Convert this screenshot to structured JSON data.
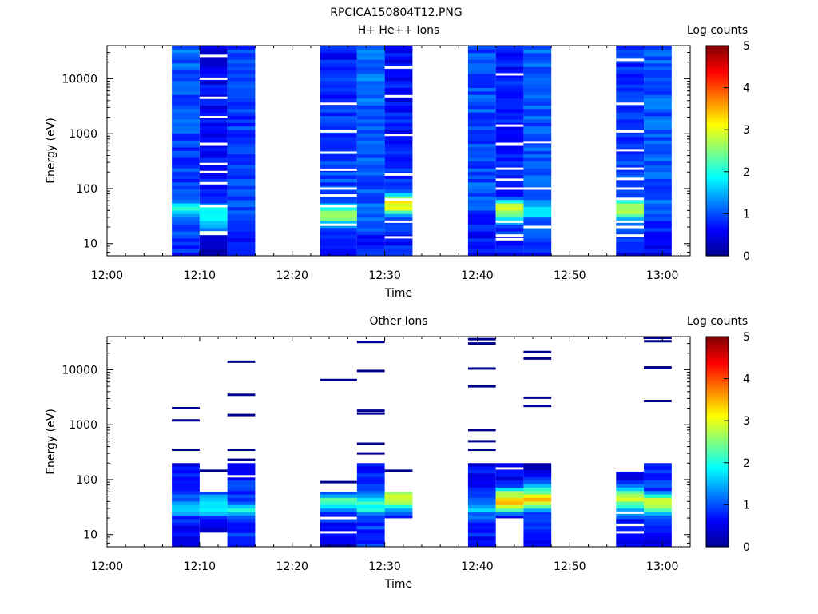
{
  "figure_title": "RPCICA150804T12.PNG",
  "colormap_stops": [
    "#00008f",
    "#0000ff",
    "#0080ff",
    "#00ffff",
    "#80ff80",
    "#ffff00",
    "#ff8000",
    "#ff0000",
    "#800000"
  ],
  "chart_data": [
    {
      "type": "heatmap",
      "title": "H+ He++ Ions",
      "xlabel": "Time",
      "ylabel": "Energy (eV)",
      "yscale": "log",
      "ylim": [
        6,
        40000
      ],
      "xlim": [
        "12:00",
        "13:03"
      ],
      "x_ticks": [
        "12:00",
        "12:10",
        "12:20",
        "12:30",
        "12:40",
        "12:50",
        "13:00"
      ],
      "y_ticks": [
        "10",
        "100",
        "1000",
        "10000"
      ],
      "colorbar": {
        "label": "Log counts",
        "min": 0,
        "max": 5,
        "ticks": [
          "0",
          "1",
          "2",
          "3",
          "4",
          "5"
        ]
      },
      "time_columns": [
        {
          "start": "12:07",
          "end": "12:10",
          "profile": [
            [
              6,
              0.8
            ],
            [
              20,
              1.0
            ],
            [
              30,
              1.4
            ],
            [
              45,
              2.2
            ],
            [
              60,
              1.0
            ],
            [
              150,
              0.9
            ],
            [
              40000,
              1.1
            ]
          ],
          "gaps": []
        },
        {
          "start": "12:10",
          "end": "12:13",
          "profile": [
            [
              6,
              0.3
            ],
            [
              14,
              0.5
            ],
            [
              20,
              1.3
            ],
            [
              30,
              2.0
            ],
            [
              45,
              1.8
            ],
            [
              60,
              0.8
            ],
            [
              40000,
              0.5
            ]
          ],
          "gaps": [
            15,
            16,
            48,
            125,
            200,
            280,
            650,
            2000,
            4500,
            10000,
            26000
          ]
        },
        {
          "start": "12:13",
          "end": "12:16",
          "profile": [
            [
              6,
              0.6
            ],
            [
              20,
              0.8
            ],
            [
              45,
              1.1
            ],
            [
              60,
              0.9
            ],
            [
              40000,
              0.9
            ]
          ],
          "gaps": []
        },
        {
          "start": "12:23",
          "end": "12:27",
          "profile": [
            [
              6,
              0.5
            ],
            [
              20,
              1.0
            ],
            [
              28,
              2.3
            ],
            [
              40,
              2.6
            ],
            [
              55,
              1.0
            ],
            [
              40000,
              0.7
            ]
          ],
          "gaps": [
            22,
            48,
            75,
            100,
            220,
            450,
            1100,
            3500
          ]
        },
        {
          "start": "12:27",
          "end": "12:30",
          "profile": [
            [
              6,
              0.7
            ],
            [
              20,
              0.9
            ],
            [
              45,
              1.2
            ],
            [
              60,
              1.0
            ],
            [
              40000,
              1.2
            ]
          ],
          "gaps": []
        },
        {
          "start": "12:30",
          "end": "12:33",
          "profile": [
            [
              6,
              0.9
            ],
            [
              14,
              0.6
            ],
            [
              30,
              1.0
            ],
            [
              45,
              3.0
            ],
            [
              60,
              3.1
            ],
            [
              100,
              0.8
            ],
            [
              40000,
              0.6
            ]
          ],
          "gaps": [
            13,
            25,
            63,
            180,
            950,
            4800,
            16000
          ]
        },
        {
          "start": "12:39",
          "end": "12:42",
          "profile": [
            [
              6,
              0.5
            ],
            [
              20,
              0.8
            ],
            [
              60,
              1.0
            ],
            [
              40000,
              1.0
            ]
          ],
          "gaps": []
        },
        {
          "start": "12:42",
          "end": "12:45",
          "profile": [
            [
              6,
              0.6
            ],
            [
              20,
              0.9
            ],
            [
              35,
              2.6
            ],
            [
              50,
              2.9
            ],
            [
              70,
              0.8
            ],
            [
              40000,
              0.7
            ]
          ],
          "gaps": [
            12,
            14,
            25,
            100,
            145,
            230,
            650,
            1400,
            12000
          ]
        },
        {
          "start": "12:45",
          "end": "12:48",
          "profile": [
            [
              6,
              0.7
            ],
            [
              25,
              1.0
            ],
            [
              38,
              2.0
            ],
            [
              50,
              1.5
            ],
            [
              70,
              1.0
            ],
            [
              40000,
              1.1
            ]
          ],
          "gaps": [
            20,
            100,
            700
          ]
        },
        {
          "start": "12:55",
          "end": "12:58",
          "profile": [
            [
              6,
              0.5
            ],
            [
              25,
              1.2
            ],
            [
              35,
              2.6
            ],
            [
              50,
              2.8
            ],
            [
              70,
              1.0
            ],
            [
              40000,
              0.8
            ]
          ],
          "gaps": [
            14,
            20,
            25,
            65,
            100,
            150,
            230,
            500,
            1100,
            3500,
            22000
          ]
        },
        {
          "start": "12:58",
          "end": "13:01",
          "profile": [
            [
              6,
              0.6
            ],
            [
              20,
              0.8
            ],
            [
              40,
              1.2
            ],
            [
              100,
              1.0
            ],
            [
              40000,
              1.1
            ]
          ],
          "gaps": []
        }
      ]
    },
    {
      "type": "heatmap",
      "title": "Other Ions",
      "xlabel": "Time",
      "ylabel": "Energy (eV)",
      "yscale": "log",
      "ylim": [
        6,
        40000
      ],
      "xlim": [
        "12:00",
        "13:03"
      ],
      "x_ticks": [
        "12:00",
        "12:10",
        "12:20",
        "12:30",
        "12:40",
        "12:50",
        "13:00"
      ],
      "y_ticks": [
        "10",
        "100",
        "1000",
        "10000"
      ],
      "colorbar": {
        "label": "Log counts",
        "min": 0,
        "max": 5,
        "ticks": [
          "0",
          "1",
          "2",
          "3",
          "4",
          "5"
        ]
      },
      "time_columns": [
        {
          "start": "12:07",
          "end": "12:10",
          "band": [
            6,
            200
          ],
          "profile": [
            [
              6,
              0.3
            ],
            [
              20,
              0.8
            ],
            [
              28,
              1.6
            ],
            [
              35,
              1.3
            ],
            [
              60,
              0.8
            ],
            [
              200,
              0.6
            ]
          ],
          "gaps": [],
          "lines": [
            350,
            1200,
            2000
          ]
        },
        {
          "start": "12:10",
          "end": "12:13",
          "band": [
            11,
            60
          ],
          "profile": [
            [
              11,
              0.3
            ],
            [
              20,
              0.8
            ],
            [
              28,
              2.0
            ],
            [
              38,
              1.8
            ],
            [
              60,
              1.0
            ]
          ],
          "gaps": [],
          "lines": [
            145
          ]
        },
        {
          "start": "12:13",
          "end": "12:16",
          "band": [
            6,
            200
          ],
          "profile": [
            [
              6,
              0.8
            ],
            [
              20,
              0.9
            ],
            [
              28,
              2.3
            ],
            [
              35,
              1.0
            ],
            [
              60,
              0.8
            ],
            [
              200,
              0.7
            ]
          ],
          "gaps": [
            115
          ],
          "lines": [
            230,
            350,
            1500,
            3500,
            14000
          ]
        },
        {
          "start": "12:23",
          "end": "12:27",
          "band": [
            6,
            60
          ],
          "profile": [
            [
              6,
              0.3
            ],
            [
              14,
              0.7
            ],
            [
              25,
              0.8
            ],
            [
              32,
              2.0
            ],
            [
              45,
              2.2
            ],
            [
              60,
              0.8
            ]
          ],
          "gaps": [
            11,
            20
          ],
          "lines": [
            90,
            6500
          ]
        },
        {
          "start": "12:27",
          "end": "12:30",
          "band": [
            6,
            200
          ],
          "profile": [
            [
              6,
              0.8
            ],
            [
              20,
              0.9
            ],
            [
              30,
              2.0
            ],
            [
              40,
              2.2
            ],
            [
              60,
              0.9
            ],
            [
              200,
              0.6
            ]
          ],
          "gaps": [],
          "lines": [
            300,
            450,
            1600,
            1800,
            9500,
            32000
          ]
        },
        {
          "start": "12:30",
          "end": "12:33",
          "band": [
            20,
            60
          ],
          "profile": [
            [
              20,
              0.4
            ],
            [
              30,
              1.5
            ],
            [
              40,
              3.2
            ],
            [
              50,
              2.8
            ],
            [
              60,
              2.3
            ]
          ],
          "gaps": [],
          "lines": [
            145
          ]
        },
        {
          "start": "12:39",
          "end": "12:42",
          "band": [
            6,
            200
          ],
          "profile": [
            [
              6,
              0.6
            ],
            [
              20,
              0.9
            ],
            [
              28,
              1.6
            ],
            [
              38,
              1.2
            ],
            [
              60,
              0.7
            ],
            [
              200,
              0.6
            ]
          ],
          "gaps": [],
          "lines": [
            350,
            500,
            800,
            5000,
            10500,
            30000,
            36000
          ]
        },
        {
          "start": "12:42",
          "end": "12:45",
          "band": [
            20,
            200
          ],
          "profile": [
            [
              20,
              0.4
            ],
            [
              30,
              2.6
            ],
            [
              40,
              3.5
            ],
            [
              55,
              2.8
            ],
            [
              80,
              0.7
            ],
            [
              200,
              0.4
            ]
          ],
          "gaps": [
            160
          ],
          "lines": []
        },
        {
          "start": "12:45",
          "end": "12:48",
          "band": [
            6,
            200
          ],
          "profile": [
            [
              6,
              0.7
            ],
            [
              25,
              0.9
            ],
            [
              35,
              2.8
            ],
            [
              45,
              3.5
            ],
            [
              55,
              2.5
            ],
            [
              100,
              0.8
            ],
            [
              200,
              0.3
            ]
          ],
          "gaps": [],
          "lines": [
            2200,
            3100,
            16000,
            21000
          ]
        },
        {
          "start": "12:55",
          "end": "12:58",
          "band": [
            6,
            140
          ],
          "profile": [
            [
              6,
              0.7
            ],
            [
              20,
              0.8
            ],
            [
              30,
              1.5
            ],
            [
              40,
              2.8
            ],
            [
              55,
              2.5
            ],
            [
              100,
              0.7
            ],
            [
              140,
              0.4
            ]
          ],
          "gaps": [
            11,
            15,
            25
          ],
          "lines": []
        },
        {
          "start": "12:58",
          "end": "13:01",
          "band": [
            6,
            200
          ],
          "profile": [
            [
              6,
              0.4
            ],
            [
              15,
              0.8
            ],
            [
              25,
              1.6
            ],
            [
              35,
              3.0
            ],
            [
              45,
              2.6
            ],
            [
              60,
              1.0
            ],
            [
              200,
              0.8
            ]
          ],
          "gaps": [],
          "lines": [
            2700,
            11000,
            33000,
            38000
          ]
        }
      ]
    }
  ]
}
